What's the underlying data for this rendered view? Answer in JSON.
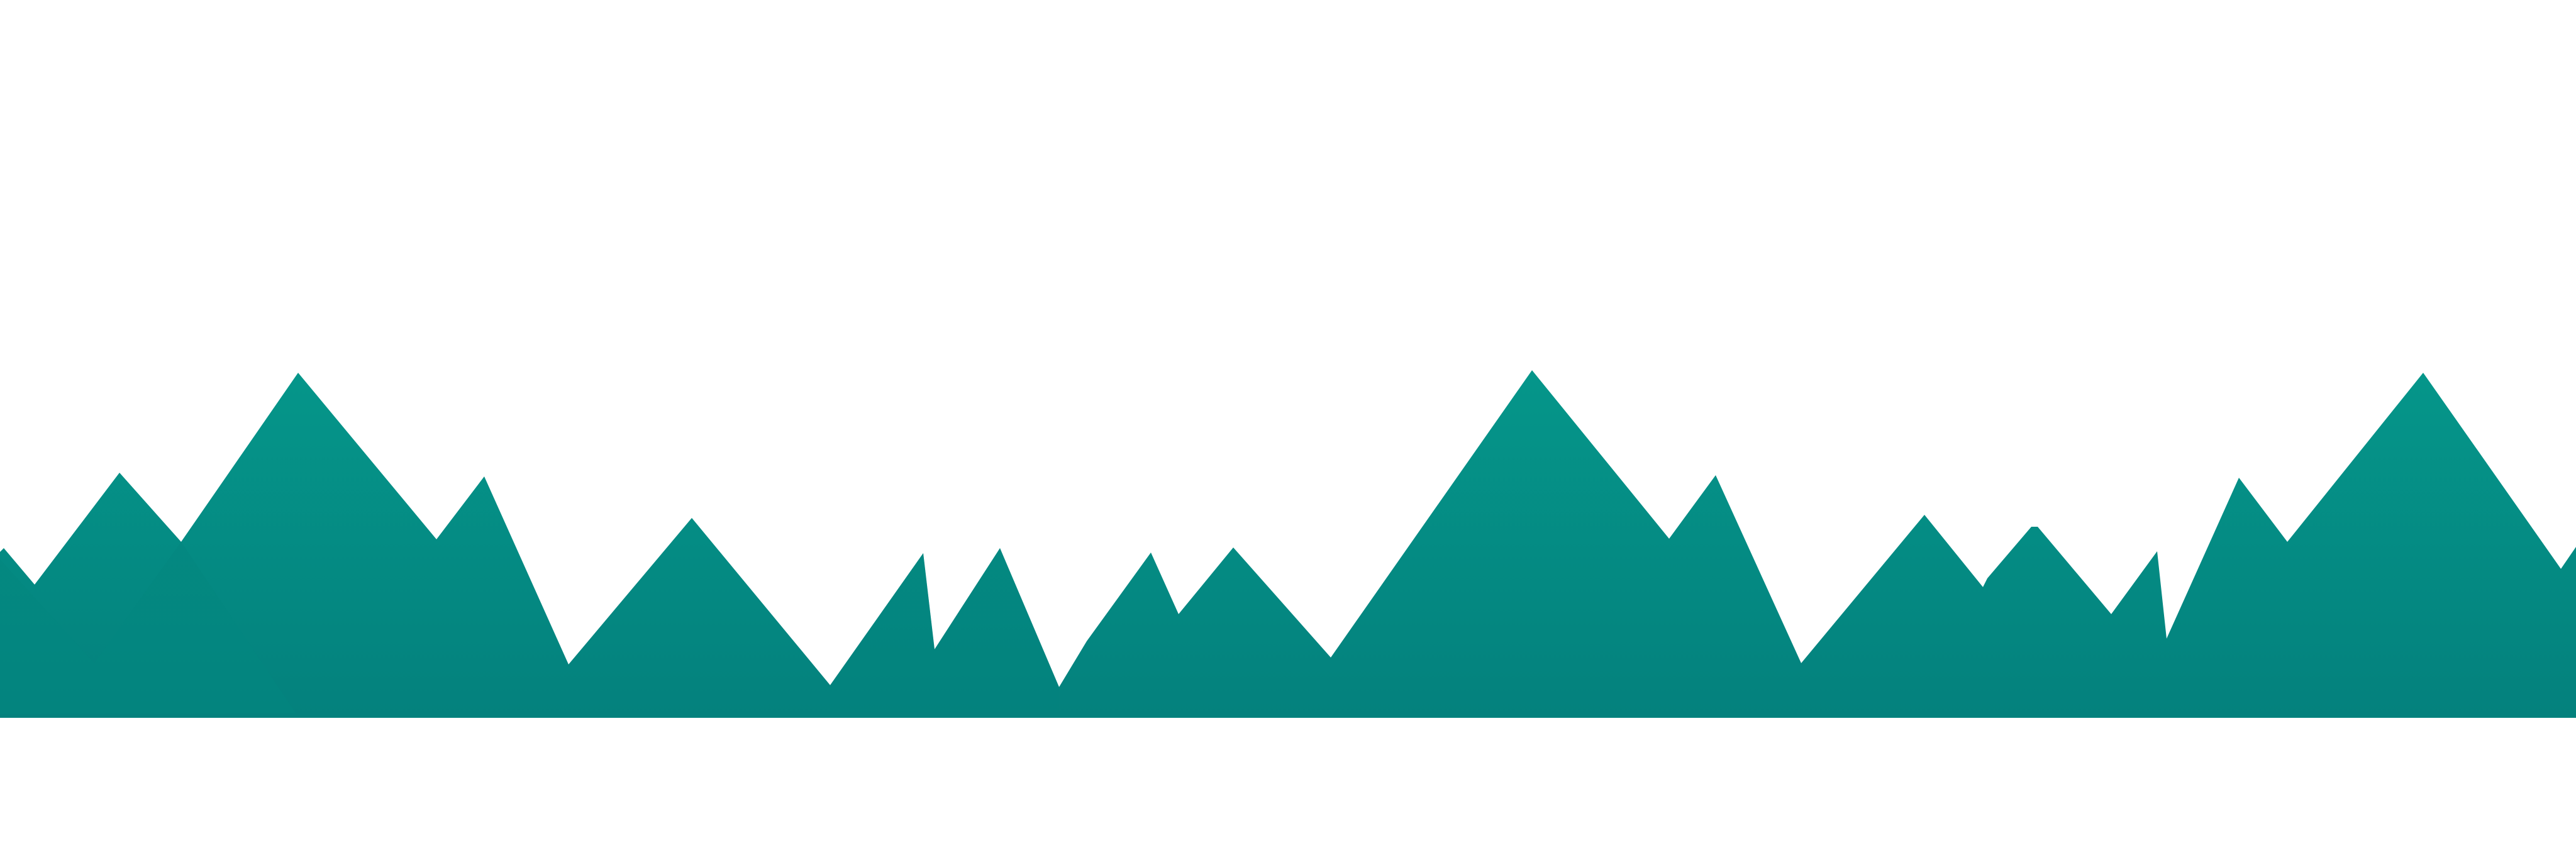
{
  "scene": {
    "description_free": true,
    "background_color": "#ffffff",
    "colors": {
      "mountain_top": "#05968a",
      "mountain_bottom": "#04817d",
      "edge_highlight": "#0a8f86"
    }
  }
}
